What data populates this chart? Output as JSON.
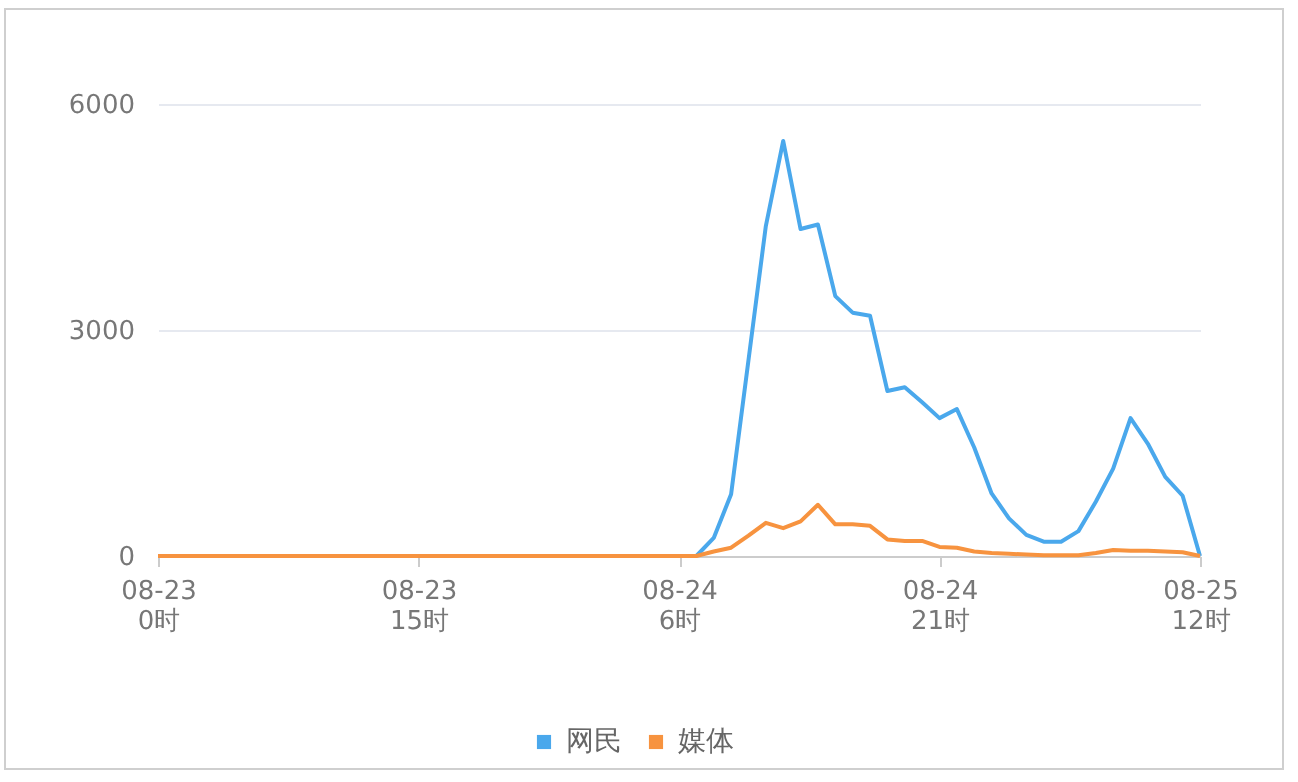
{
  "chart_data": {
    "type": "line",
    "categories": [
      "08-23\n0时",
      null,
      null,
      null,
      null,
      null,
      null,
      null,
      null,
      null,
      null,
      null,
      null,
      null,
      null,
      "08-23\n15时",
      null,
      null,
      null,
      null,
      null,
      null,
      null,
      null,
      null,
      null,
      null,
      null,
      null,
      null,
      "08-24\n6时",
      null,
      null,
      null,
      null,
      null,
      null,
      null,
      null,
      null,
      null,
      null,
      null,
      null,
      null,
      "08-24\n21时",
      null,
      null,
      null,
      null,
      null,
      null,
      null,
      null,
      null,
      null,
      null,
      null,
      null,
      null,
      "08-25\n12时"
    ],
    "ylim": [
      0,
      6000
    ],
    "yticks": [
      0,
      3000,
      6000
    ],
    "grid": "y",
    "legend": "bottom",
    "marker": "none",
    "line_style": "solid",
    "series": [
      {
        "name": "网民",
        "color": "#4aa8ec",
        "values": [
          null,
          null,
          null,
          null,
          null,
          null,
          null,
          null,
          null,
          null,
          null,
          null,
          null,
          null,
          null,
          null,
          null,
          null,
          null,
          null,
          null,
          null,
          null,
          null,
          null,
          null,
          null,
          null,
          null,
          null,
          null,
          0,
          240,
          820,
          2600,
          4380,
          5510,
          4340,
          4400,
          3450,
          3230,
          3190,
          2190,
          2240,
          2040,
          1830,
          1950,
          1440,
          830,
          500,
          280,
          190,
          190,
          330,
          720,
          1160,
          1830,
          1490,
          1050,
          800,
          0
        ]
      },
      {
        "name": "媒体",
        "color": "#f7933f",
        "values": [
          0,
          0,
          0,
          0,
          0,
          0,
          0,
          0,
          0,
          0,
          0,
          0,
          0,
          0,
          0,
          0,
          0,
          0,
          0,
          0,
          0,
          0,
          0,
          0,
          0,
          0,
          0,
          0,
          0,
          0,
          0,
          0,
          60,
          110,
          270,
          440,
          370,
          460,
          680,
          420,
          420,
          400,
          220,
          200,
          200,
          120,
          110,
          60,
          40,
          30,
          20,
          10,
          10,
          10,
          40,
          80,
          70,
          70,
          60,
          50,
          0
        ]
      }
    ]
  }
}
